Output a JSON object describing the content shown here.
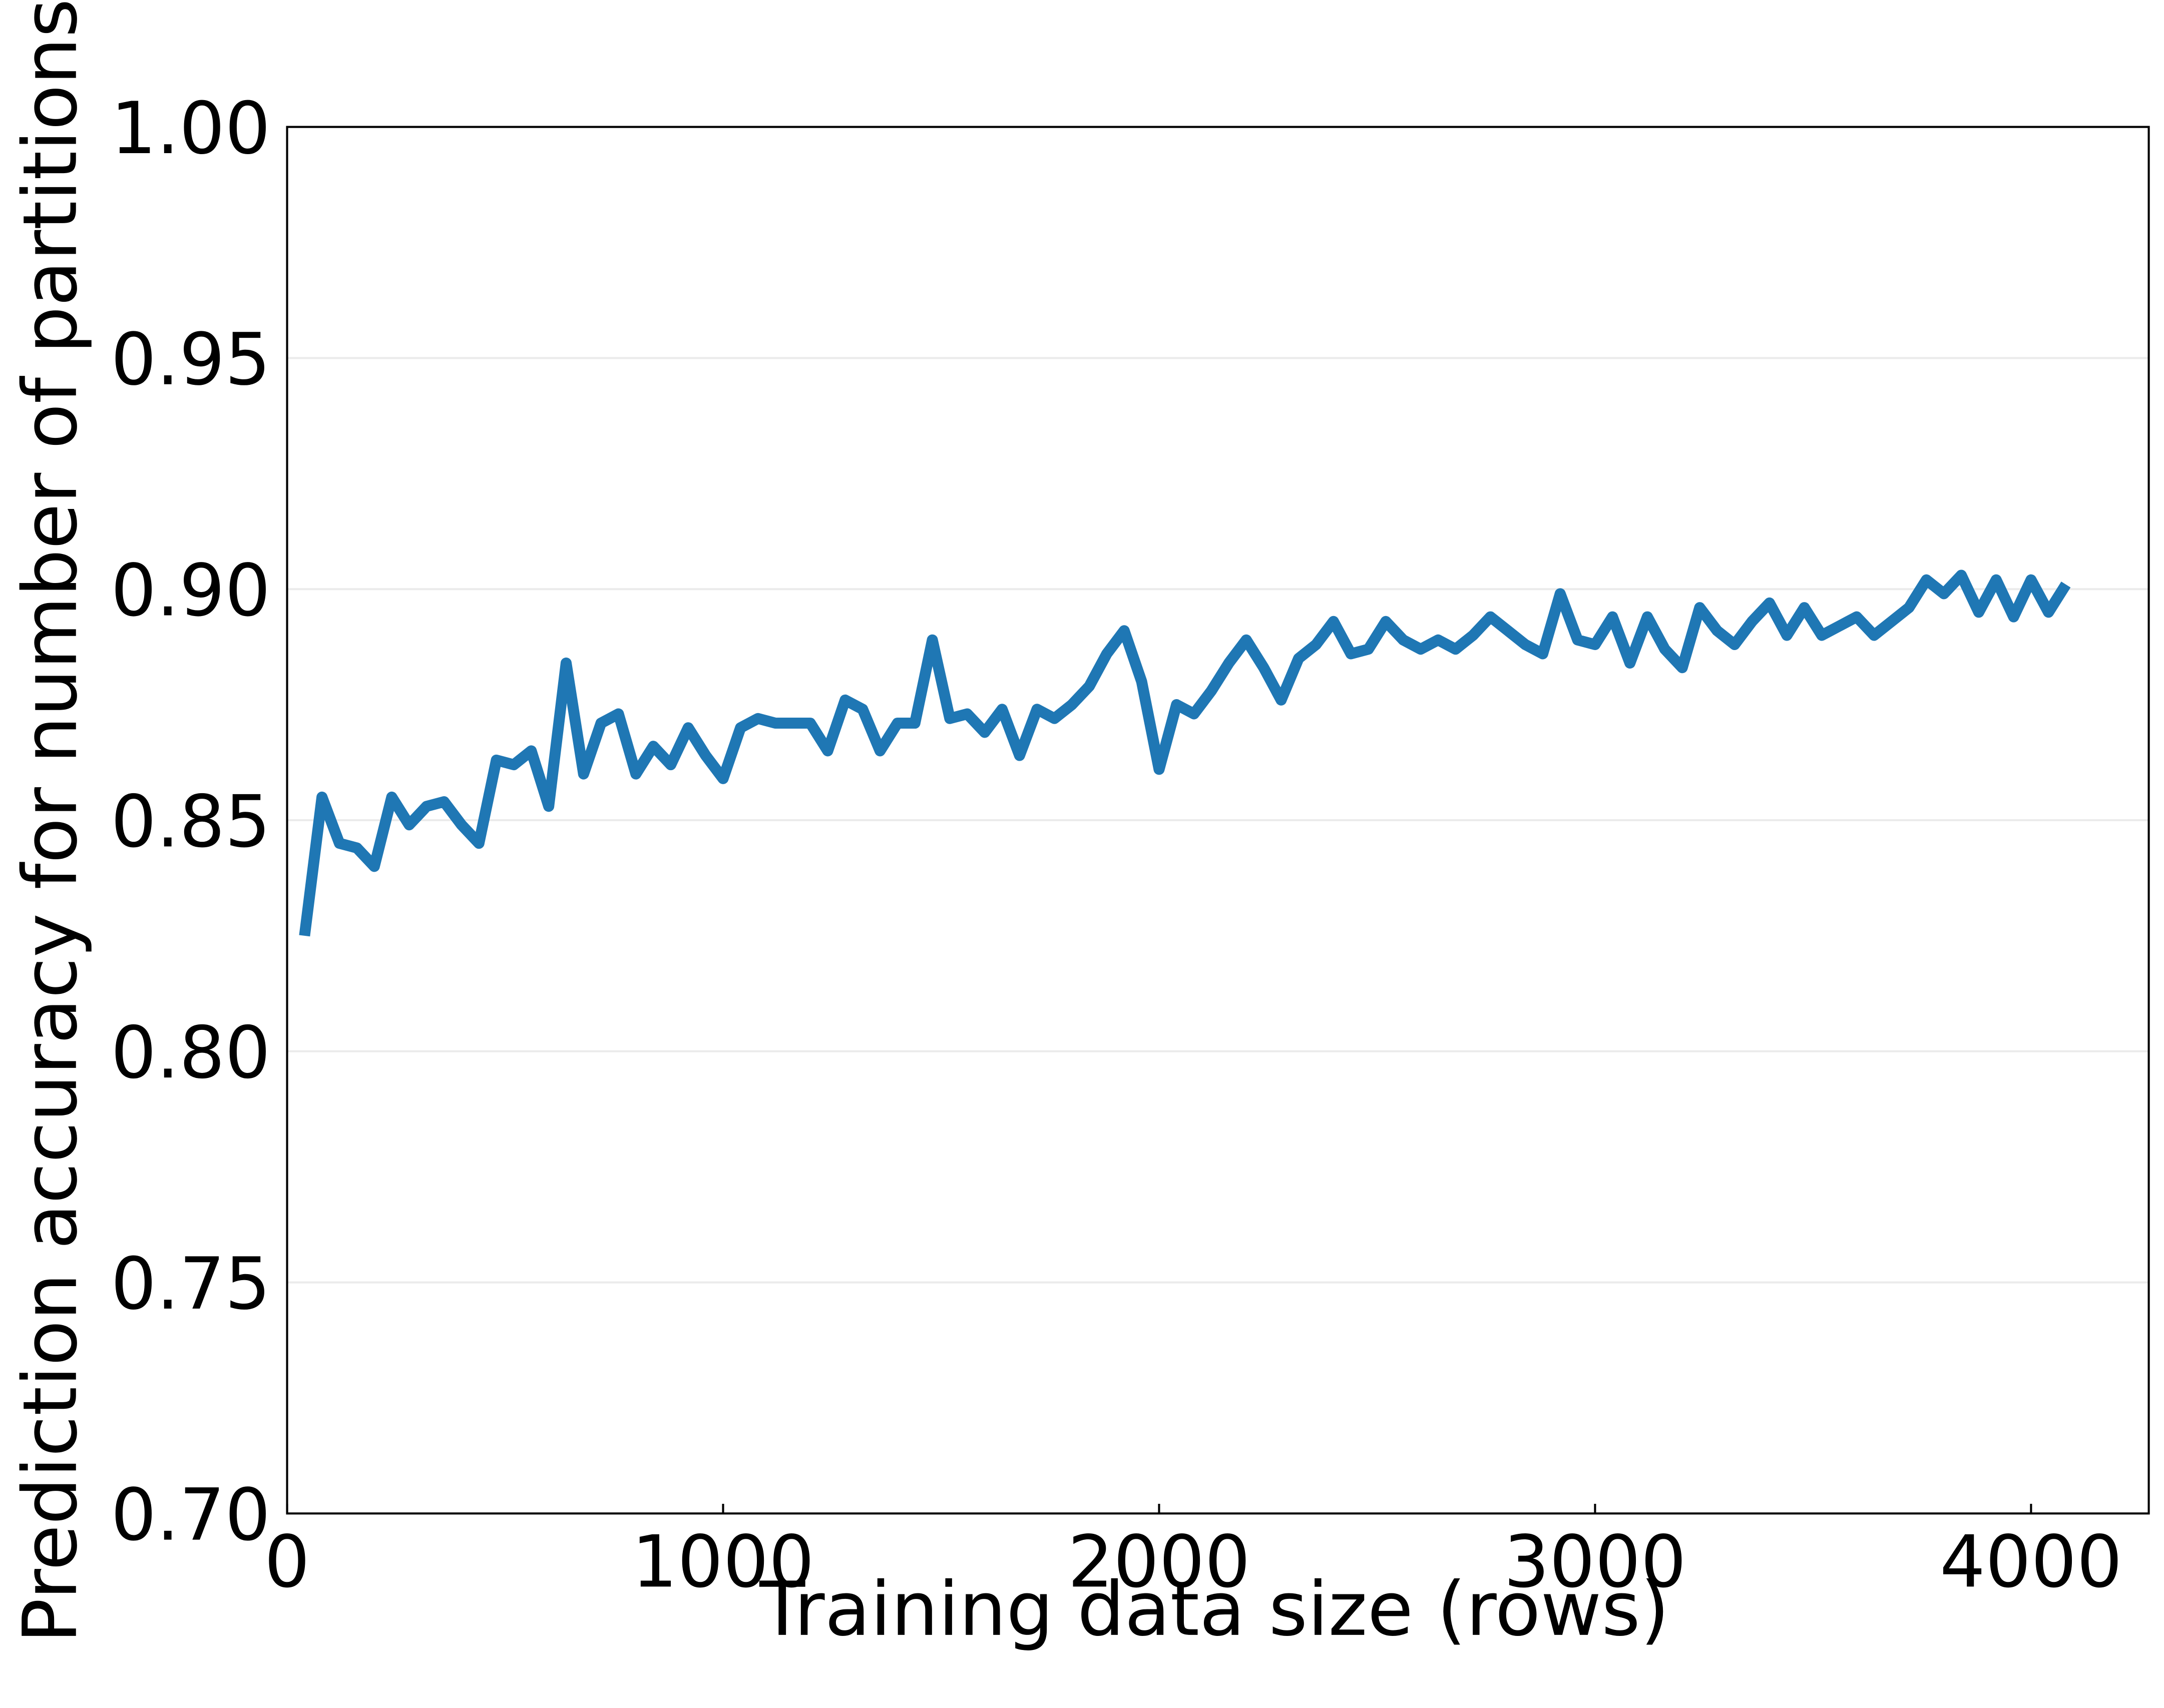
{
  "chart_data": {
    "type": "line",
    "xlabel": "Training data size (rows)",
    "ylabel": "Prediction accuracy for number of partitions",
    "x": [
      40,
      80,
      120,
      160,
      200,
      240,
      280,
      320,
      360,
      400,
      440,
      480,
      520,
      560,
      600,
      640,
      680,
      720,
      760,
      800,
      840,
      880,
      920,
      960,
      1000,
      1040,
      1080,
      1120,
      1160,
      1200,
      1240,
      1280,
      1320,
      1360,
      1400,
      1440,
      1480,
      1520,
      1560,
      1600,
      1640,
      1680,
      1720,
      1760,
      1800,
      1840,
      1880,
      1920,
      1960,
      2000,
      2040,
      2080,
      2120,
      2160,
      2200,
      2240,
      2280,
      2320,
      2360,
      2400,
      2440,
      2480,
      2520,
      2560,
      2600,
      2640,
      2680,
      2720,
      2760,
      2800,
      2840,
      2880,
      2920,
      2960,
      3000,
      3040,
      3080,
      3120,
      3160,
      3200,
      3240,
      3280,
      3320,
      3360,
      3400,
      3440,
      3480,
      3520,
      3560,
      3600,
      3640,
      3680,
      3720,
      3760,
      3800,
      3840,
      3880,
      3920,
      3960,
      4000,
      4040,
      4080
    ],
    "series": [
      {
        "color": "#1f77b4",
        "values": [
          0.825,
          0.855,
          0.845,
          0.844,
          0.84,
          0.855,
          0.849,
          0.853,
          0.854,
          0.849,
          0.845,
          0.863,
          0.862,
          0.865,
          0.853,
          0.884,
          0.86,
          0.871,
          0.873,
          0.86,
          0.866,
          0.862,
          0.87,
          0.864,
          0.859,
          0.87,
          0.872,
          0.871,
          0.871,
          0.871,
          0.865,
          0.876,
          0.874,
          0.865,
          0.871,
          0.871,
          0.889,
          0.872,
          0.873,
          0.869,
          0.874,
          0.864,
          0.874,
          0.872,
          0.875,
          0.879,
          0.886,
          0.891,
          0.88,
          0.861,
          0.875,
          0.873,
          0.878,
          0.884,
          0.889,
          0.883,
          0.876,
          0.885,
          0.888,
          0.893,
          0.886,
          0.887,
          0.893,
          0.889,
          0.887,
          0.889,
          0.887,
          0.89,
          0.894,
          0.891,
          0.888,
          0.886,
          0.899,
          0.889,
          0.888,
          0.894,
          0.884,
          0.894,
          0.887,
          0.883,
          0.896,
          0.891,
          0.888,
          0.893,
          0.897,
          0.89,
          0.896,
          0.89,
          0.892,
          0.894,
          0.89,
          0.893,
          0.896,
          0.902,
          0.899,
          0.903,
          0.895,
          0.902,
          0.894,
          0.902,
          0.895,
          0.901
        ]
      }
    ],
    "xlim": [
      0,
      4270
    ],
    "ylim": [
      0.7,
      1.0
    ],
    "xticks": [
      0,
      1000,
      2000,
      3000,
      4000
    ],
    "yticks": [
      {
        "value": 0.7,
        "label": "0.70"
      },
      {
        "value": 0.75,
        "label": "0.75"
      },
      {
        "value": 0.8,
        "label": "0.80"
      },
      {
        "value": 0.85,
        "label": "0.85"
      },
      {
        "value": 0.9,
        "label": "0.90"
      },
      {
        "value": 0.95,
        "label": "0.95"
      },
      {
        "value": 1.0,
        "label": "1.00"
      }
    ],
    "grid": true
  }
}
